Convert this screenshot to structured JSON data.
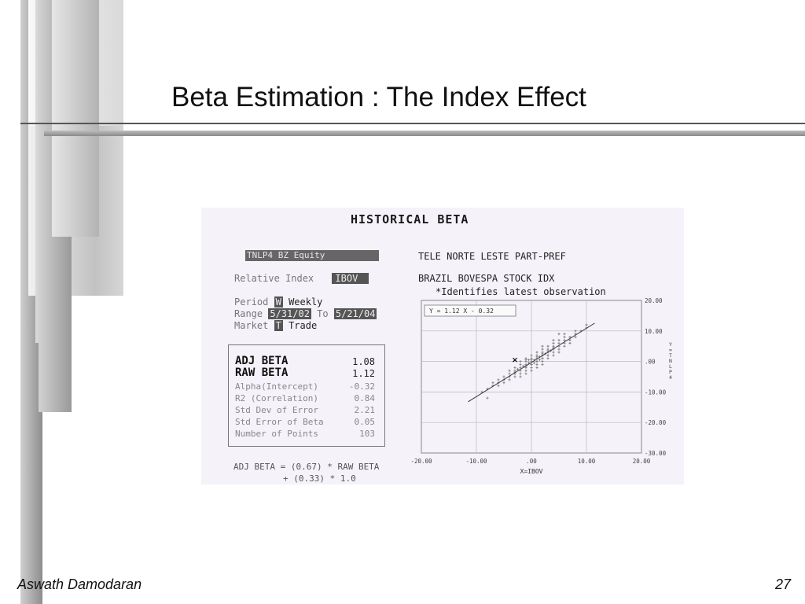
{
  "slide": {
    "title": "Beta Estimation : The Index Effect",
    "author": "Aswath Damodaran",
    "page_number": "27"
  },
  "terminal": {
    "header": "HISTORICAL BETA",
    "ticker": "TNLP4   BZ Equity",
    "security_name": "TELE NORTE LESTE PART-PREF",
    "relative_index_label": "Relative Index",
    "relative_index_value": "IBOV",
    "index_name": "BRAZIL BOVESPA STOCK IDX",
    "latest_obs_note": "*Identifies latest observation",
    "period_label": "Period",
    "period_code": "W",
    "period_value": "Weekly",
    "range_label": "Range",
    "range_start": "5/31/02",
    "range_to": "To",
    "range_end": "5/21/04",
    "market_label": "Market",
    "market_code": "T",
    "market_value": "Trade",
    "stats": [
      {
        "label": "ADJ BETA",
        "value": "1.08"
      },
      {
        "label": "RAW BETA",
        "value": "1.12"
      },
      {
        "label": "Alpha(Intercept)",
        "value": "-0.32"
      },
      {
        "label": "R2 (Correlation)",
        "value": "0.84"
      },
      {
        "label": "Std Dev of Error",
        "value": "2.21"
      },
      {
        "label": "Std Error of Beta",
        "value": "0.05"
      },
      {
        "label": "Number of Points",
        "value": "103"
      }
    ],
    "formula_line1": "ADJ BETA = (0.67) * RAW BETA",
    "formula_line2": "+ (0.33) * 1.0"
  },
  "chart_data": {
    "type": "scatter",
    "equation_label": "Y =  1.12 X -   0.32",
    "xlabel": "X=IBOV",
    "ylabel": "Y=TNLP4",
    "xlim": [
      -20,
      20
    ],
    "ylim": [
      -30,
      20
    ],
    "x_ticks": [
      "-20.00",
      "-10.00",
      ".00",
      "10.00",
      "20.00"
    ],
    "y_ticks": [
      "20.00",
      "10.00",
      ".00",
      "-10.00",
      "-20.00",
      "-30.00"
    ],
    "grid": true,
    "regression": {
      "slope": 1.12,
      "intercept": -0.32
    },
    "points": [
      [
        -9,
        -10
      ],
      [
        -8,
        -9
      ],
      [
        -7,
        -8
      ],
      [
        -7,
        -7
      ],
      [
        -6,
        -7
      ],
      [
        -6,
        -6
      ],
      [
        -5,
        -6
      ],
      [
        -5,
        -5
      ],
      [
        -5,
        -7
      ],
      [
        -4,
        -5
      ],
      [
        -4,
        -4
      ],
      [
        -4,
        -6
      ],
      [
        -3,
        -4
      ],
      [
        -3,
        -3
      ],
      [
        -3,
        -5
      ],
      [
        -3,
        -2
      ],
      [
        -2,
        -3
      ],
      [
        -2,
        -2
      ],
      [
        -2,
        -4
      ],
      [
        -2,
        -1
      ],
      [
        -2,
        -5
      ],
      [
        -1,
        -2
      ],
      [
        -1,
        -1
      ],
      [
        -1,
        -3
      ],
      [
        -1,
        0
      ],
      [
        -1,
        -4
      ],
      [
        -1,
        1
      ],
      [
        0,
        -1
      ],
      [
        0,
        0
      ],
      [
        0,
        1
      ],
      [
        0,
        -2
      ],
      [
        0,
        2
      ],
      [
        0,
        -3
      ],
      [
        0,
        -1
      ],
      [
        1,
        0
      ],
      [
        1,
        1
      ],
      [
        1,
        2
      ],
      [
        1,
        -1
      ],
      [
        1,
        3
      ],
      [
        1,
        0
      ],
      [
        1,
        -2
      ],
      [
        2,
        1
      ],
      [
        2,
        2
      ],
      [
        2,
        3
      ],
      [
        2,
        0
      ],
      [
        2,
        4
      ],
      [
        2,
        1
      ],
      [
        2,
        -1
      ],
      [
        3,
        2
      ],
      [
        3,
        3
      ],
      [
        3,
        4
      ],
      [
        3,
        1
      ],
      [
        3,
        5
      ],
      [
        3,
        2
      ],
      [
        4,
        3
      ],
      [
        4,
        4
      ],
      [
        4,
        5
      ],
      [
        4,
        2
      ],
      [
        4,
        6
      ],
      [
        5,
        4
      ],
      [
        5,
        5
      ],
      [
        5,
        6
      ],
      [
        5,
        3
      ],
      [
        5,
        7
      ],
      [
        6,
        6
      ],
      [
        6,
        7
      ],
      [
        6,
        5
      ],
      [
        6,
        8
      ],
      [
        7,
        7
      ],
      [
        7,
        8
      ],
      [
        7,
        6
      ],
      [
        8,
        9
      ],
      [
        8,
        8
      ],
      [
        8,
        10
      ],
      [
        9,
        10
      ],
      [
        10,
        12
      ],
      [
        10,
        11
      ],
      [
        -1,
        0.5
      ],
      [
        0.5,
        -0.5
      ],
      [
        1.5,
        1.5
      ],
      [
        -0.5,
        -0.5
      ],
      [
        2.5,
        2.5
      ],
      [
        -1.5,
        -1.5
      ],
      [
        3.5,
        3.5
      ],
      [
        -2.5,
        -2.5
      ],
      [
        0.5,
        0.5
      ],
      [
        1.5,
        0.5
      ],
      [
        -0.5,
        0.5
      ],
      [
        2,
        2.5
      ],
      [
        -1,
        -1.5
      ],
      [
        3,
        3.5
      ],
      [
        -3,
        -3.5
      ],
      [
        4,
        4.5
      ],
      [
        0,
        0.5
      ],
      [
        1,
        1.5
      ],
      [
        -6,
        -8
      ],
      [
        6,
        9
      ],
      [
        -4,
        -3
      ],
      [
        4,
        7
      ],
      [
        -2,
        0
      ],
      [
        2,
        5
      ],
      [
        -8,
        -12
      ],
      [
        5,
        9
      ]
    ],
    "latest_point": [
      -3,
      0.5
    ]
  }
}
